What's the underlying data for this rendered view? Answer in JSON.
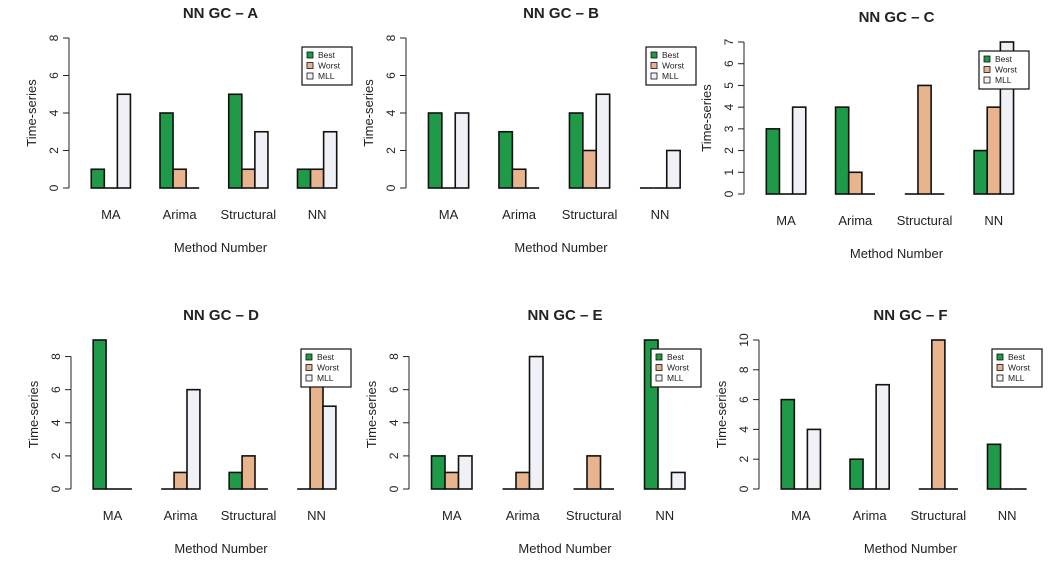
{
  "figure": {
    "chart_data": [
      {
        "type": "bar",
        "title": "NN GC – A",
        "xlabel": "Method Number",
        "ylabel": "Time-series",
        "categories": [
          "MA",
          "Arima",
          "Structural",
          "NN"
        ],
        "series": [
          {
            "name": "Best",
            "values": [
              1,
              4,
              5,
              1
            ]
          },
          {
            "name": "Worst",
            "values": [
              0,
              1,
              1,
              1
            ]
          },
          {
            "name": "MLL",
            "values": [
              5,
              0,
              3,
              3
            ]
          }
        ],
        "ylim": [
          0,
          8
        ],
        "yticks": [
          0,
          2,
          4,
          6,
          8
        ],
        "legend": "top-right",
        "grid": false
      },
      {
        "type": "bar",
        "title": "NN GC – B",
        "xlabel": "Method Number",
        "ylabel": "Time-series",
        "categories": [
          "MA",
          "Arima",
          "Structural",
          "NN"
        ],
        "series": [
          {
            "name": "Best",
            "values": [
              4,
              3,
              4,
              0
            ]
          },
          {
            "name": "Worst",
            "values": [
              0,
              1,
              2,
              0
            ]
          },
          {
            "name": "MLL",
            "values": [
              4,
              0,
              5,
              2
            ]
          }
        ],
        "ylim": [
          0,
          8
        ],
        "yticks": [
          0,
          2,
          4,
          6,
          8
        ],
        "legend": "top-right",
        "grid": false
      },
      {
        "type": "bar",
        "title": "NN GC – C",
        "xlabel": "Method Number",
        "ylabel": "Time-series",
        "categories": [
          "MA",
          "Arima",
          "Structural",
          "NN"
        ],
        "series": [
          {
            "name": "Best",
            "values": [
              3,
              4,
              0,
              2
            ]
          },
          {
            "name": "Worst",
            "values": [
              0,
              1,
              5,
              4
            ]
          },
          {
            "name": "MLL",
            "values": [
              4,
              0,
              0,
              7
            ]
          }
        ],
        "ylim": [
          0,
          7
        ],
        "yticks": [
          0,
          1,
          2,
          3,
          4,
          5,
          6,
          7
        ],
        "legend": "top-right",
        "grid": false
      },
      {
        "type": "bar",
        "title": "NN GC – D",
        "xlabel": "Method Number",
        "ylabel": "Time-series",
        "categories": [
          "MA",
          "Arima",
          "Structural",
          "NN"
        ],
        "series": [
          {
            "name": "Best",
            "values": [
              9,
              0,
              1,
              0
            ]
          },
          {
            "name": "Worst",
            "values": [
              0,
              1,
              2,
              7
            ]
          },
          {
            "name": "MLL",
            "values": [
              0,
              6,
              0,
              5
            ]
          }
        ],
        "ylim": [
          0,
          9
        ],
        "yticks": [
          0,
          2,
          4,
          6,
          8
        ],
        "legend": "top-right",
        "grid": false
      },
      {
        "type": "bar",
        "title": "NN GC – E",
        "xlabel": "Method Number",
        "ylabel": "Time-series",
        "categories": [
          "MA",
          "Arima",
          "Structural",
          "NN"
        ],
        "series": [
          {
            "name": "Best",
            "values": [
              2,
              0,
              0,
              9
            ]
          },
          {
            "name": "Worst",
            "values": [
              1,
              1,
              2,
              0
            ]
          },
          {
            "name": "MLL",
            "values": [
              2,
              8,
              0,
              1
            ]
          }
        ],
        "ylim": [
          0,
          9
        ],
        "yticks": [
          0,
          2,
          4,
          6,
          8
        ],
        "legend": "top-right",
        "grid": false
      },
      {
        "type": "bar",
        "title": "NN GC – F",
        "xlabel": "Method Number",
        "ylabel": "Time-series",
        "categories": [
          "MA",
          "Arima",
          "Structural",
          "NN"
        ],
        "series": [
          {
            "name": "Best",
            "values": [
              6,
              2,
              0,
              3
            ]
          },
          {
            "name": "Worst",
            "values": [
              0,
              0,
              10,
              0
            ]
          },
          {
            "name": "MLL",
            "values": [
              4,
              7,
              0,
              0
            ]
          }
        ],
        "ylim": [
          0,
          10
        ],
        "yticks": [
          0,
          2,
          4,
          6,
          8,
          10
        ],
        "legend": "top-right",
        "grid": false
      }
    ],
    "colors": {
      "Best": "#1f9a48",
      "Worst": "#e8b48e",
      "MLL": "#eff1f7"
    }
  }
}
